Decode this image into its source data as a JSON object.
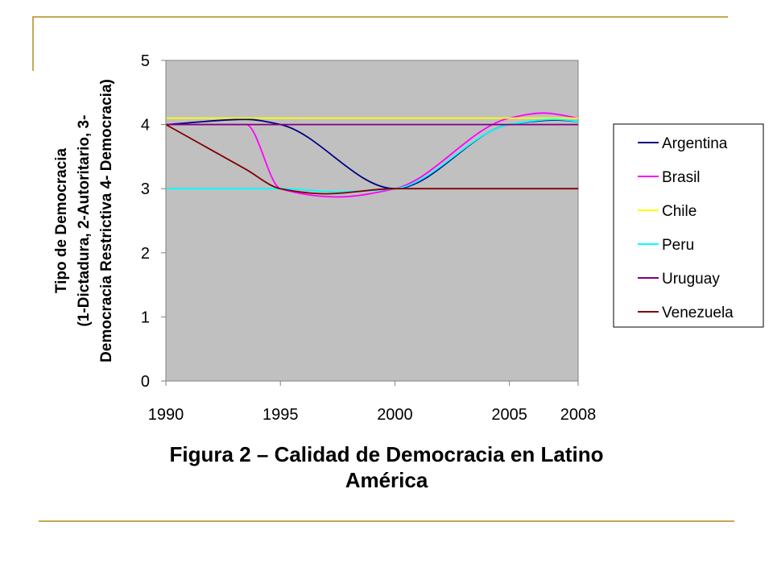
{
  "colors": {
    "plot_bg": "#c0c0c0",
    "decor": "#c8a850",
    "argentina": "#000080",
    "brasil": "#ff00ff",
    "chile": "#ffff00",
    "peru": "#00ffff",
    "uruguay": "#800080",
    "venezuela": "#800000"
  },
  "caption": {
    "line1": "Figura 2 – Calidad de Democracia en Latino",
    "line2": "América"
  },
  "chart_data": {
    "type": "line",
    "ylabel_lines": [
      "Tipo de Democracia",
      "(1-Dictadura, 2-Autoritario, 3-",
      "Democracia Restrictiva 4- Democracia)"
    ],
    "xlabel": "",
    "x_ticks": [
      "1990",
      "1995",
      "2000",
      "2005",
      "2008"
    ],
    "y_ticks": [
      "0",
      "1",
      "2",
      "3",
      "4",
      "5"
    ],
    "xlim": [
      1990,
      2008
    ],
    "ylim": [
      0,
      5
    ],
    "grid": false,
    "legend_position": "right",
    "series": [
      {
        "name": "Argentina",
        "color": "#000080",
        "x": [
          1990,
          1993.5,
          1995,
          2000,
          2005,
          2007,
          2008
        ],
        "y": [
          4.0,
          4.08,
          4.0,
          3.0,
          4.0,
          4.07,
          4.05
        ]
      },
      {
        "name": "Brasil",
        "color": "#ff00ff",
        "x": [
          1990,
          1993.5,
          1995,
          1997.5,
          2000,
          2005,
          2006.5,
          2008
        ],
        "y": [
          4.0,
          4.0,
          3.0,
          2.87,
          3.0,
          4.1,
          4.18,
          4.1
        ]
      },
      {
        "name": "Chile",
        "color": "#ffff00",
        "x": [
          1990,
          2008
        ],
        "y": [
          4.1,
          4.1
        ]
      },
      {
        "name": "Peru",
        "color": "#00ffff",
        "x": [
          1990,
          1995,
          1997.5,
          2000,
          2005,
          2007,
          2008
        ],
        "y": [
          3.0,
          3.0,
          2.95,
          3.0,
          4.0,
          4.08,
          4.05
        ]
      },
      {
        "name": "Uruguay",
        "color": "#800080",
        "x": [
          1990,
          2008
        ],
        "y": [
          4.0,
          4.0
        ]
      },
      {
        "name": "Venezuela",
        "color": "#800000",
        "x": [
          1990,
          1993.5,
          1995,
          1997,
          2000,
          2008
        ],
        "y": [
          4.0,
          3.3,
          3.0,
          2.92,
          3.0,
          3.0
        ]
      }
    ]
  }
}
